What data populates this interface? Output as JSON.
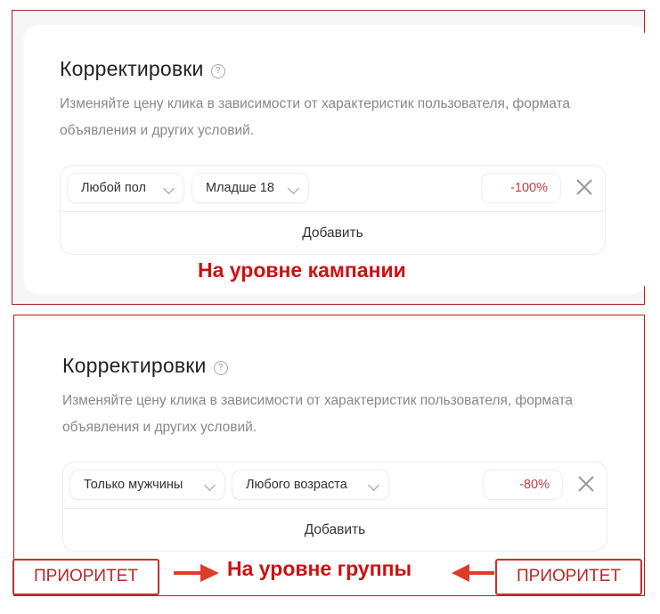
{
  "campaign_panel": {
    "title": "Корректировки",
    "help_icon": "?",
    "description": "Изменяйте цену клика в зависимости от характеристик пользователя, формата объявления и других условий.",
    "row": {
      "gender": "Любой пол",
      "age": "Младше 18",
      "value": "-100%"
    },
    "add_label": "Добавить",
    "caption": "На уровне кампании"
  },
  "group_panel": {
    "title": "Корректировки",
    "help_icon": "?",
    "description": "Изменяйте цену клика в зависимости от характеристик пользователя, формата объявления и других условий.",
    "row": {
      "gender": "Только мужчины",
      "age": "Любого возраста",
      "value": "-80%"
    },
    "add_label": "Добавить",
    "caption": "На уровне группы"
  },
  "annotations": {
    "priority_left": "ПРИОРИТЕТ",
    "priority_right": "ПРИОРИТЕТ"
  },
  "colors": {
    "accent_red": "#cc1111",
    "value_red": "#c04040",
    "frame": "#b02020"
  }
}
